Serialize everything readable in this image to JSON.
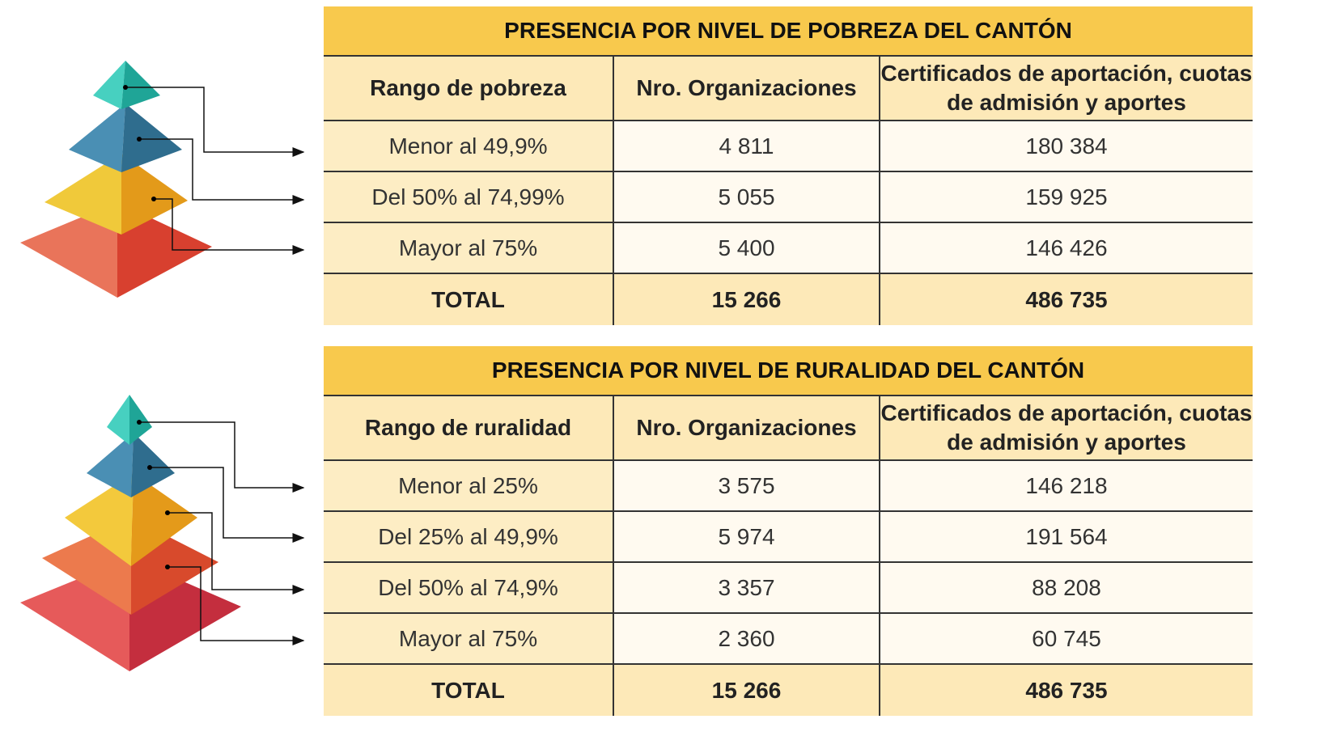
{
  "tables": [
    {
      "title": "PRESENCIA POR NIVEL DE POBREZA DEL CANTÓN",
      "headers": [
        "Rango de pobreza",
        "Nro. Organizaciones",
        "Certificados de aportación, cuotas de admisión y aportes"
      ],
      "rows": [
        [
          "Menor al 49,9%",
          "4 811",
          "180 384"
        ],
        [
          "Del 50% al 74,99%",
          "5 055",
          "159 925"
        ],
        [
          "Mayor al 75%",
          "5 400",
          "146 426"
        ]
      ],
      "total": [
        "TOTAL",
        "15 266",
        "486 735"
      ]
    },
    {
      "title": "PRESENCIA POR NIVEL DE RURALIDAD DEL CANTÓN",
      "headers": [
        "Rango de ruralidad",
        "Nro. Organizaciones",
        "Certificados de aportación, cuotas de admisión y aportes"
      ],
      "rows": [
        [
          "Menor al 25%",
          "3 575",
          "146 218"
        ],
        [
          "Del 25% al 49,9%",
          "5 974",
          "191 564"
        ],
        [
          "Del 50% al 74,9%",
          "3 357",
          "88 208"
        ],
        [
          "Mayor al 75%",
          "2 360",
          "60 745"
        ]
      ],
      "total": [
        "TOTAL",
        "15 266",
        "486 735"
      ]
    }
  ]
}
